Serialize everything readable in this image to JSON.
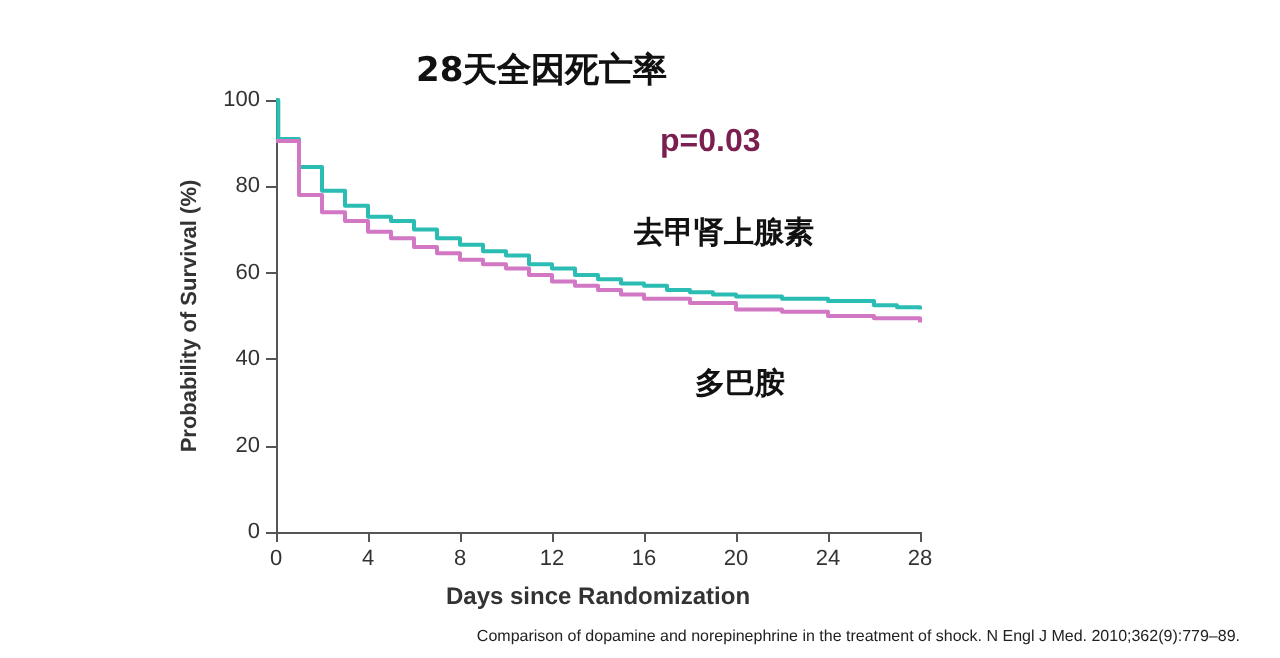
{
  "chart_data": {
    "type": "step",
    "title": "28天全因死亡率",
    "xlabel": "Days since Randomization",
    "ylabel": "Probability of Survival (%)",
    "series": [
      {
        "name": "去甲肾上腺素",
        "color": "#2bbdb3",
        "x": [
          0,
          0.1,
          1,
          2,
          3,
          4,
          5,
          6,
          7,
          8,
          9,
          10,
          11,
          12,
          13,
          14,
          15,
          16,
          17,
          18,
          19,
          20,
          22,
          24,
          26,
          27,
          28
        ],
        "values": [
          100,
          91,
          84.5,
          79,
          75.5,
          73,
          72,
          70,
          68,
          66.5,
          65,
          64,
          62,
          61,
          59.5,
          58.5,
          57.5,
          57,
          56,
          55.5,
          55,
          54.5,
          54,
          53.5,
          52.5,
          52,
          51.5
        ]
      },
      {
        "name": "多巴胺",
        "color": "#d277c4",
        "x": [
          0,
          1,
          2,
          3,
          4,
          5,
          6,
          7,
          8,
          9,
          10,
          11,
          12,
          13,
          14,
          15,
          16,
          18,
          20,
          22,
          24,
          26,
          28
        ],
        "values": [
          90.5,
          78,
          74,
          72,
          69.5,
          68,
          66,
          64.5,
          63,
          62,
          61,
          59.5,
          58,
          57,
          56,
          55,
          54,
          53,
          51.5,
          51,
          50,
          49.5,
          48.5
        ]
      }
    ],
    "xlim": [
      0,
      28
    ],
    "xticks": [
      0,
      4,
      8,
      12,
      16,
      20,
      24,
      28
    ],
    "ylim": [
      0,
      100
    ],
    "yticks": [
      0,
      20,
      40,
      60,
      80,
      100
    ],
    "grid": false,
    "legend": false,
    "marker": "none",
    "line_style": "solid",
    "annotations": [
      "p=0.03",
      "Comparison of dopamine and norepinephrine in the treatment of shock. N Engl J Med. 2010;362(9):779–89."
    ]
  }
}
